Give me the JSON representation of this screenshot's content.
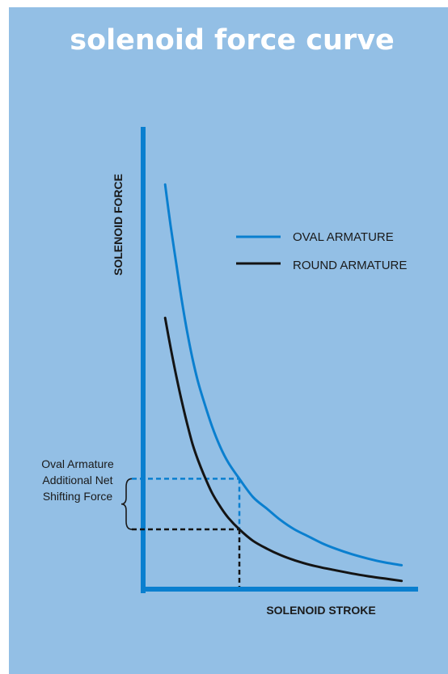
{
  "chart_data": {
    "type": "line",
    "title": "solenoid force curve",
    "xlabel": "SOLENOID STROKE",
    "ylabel": "SOLENOID FORCE",
    "xlim": [
      0,
      100
    ],
    "ylim": [
      0,
      100
    ],
    "grid": false,
    "legend_position": "top-right",
    "series": [
      {
        "name": "OVAL ARMATURE",
        "color": "#0a7fcf",
        "x": [
          8,
          10,
          12,
          14,
          16,
          18,
          20,
          22,
          25,
          28,
          31,
          35,
          40,
          45,
          50,
          55,
          60,
          65,
          70,
          76,
          82,
          88,
          94
        ],
        "y": [
          88,
          79,
          71,
          63,
          56,
          50,
          45,
          41,
          35.5,
          31,
          27.5,
          24,
          20,
          17.5,
          15,
          13,
          11.5,
          10,
          8.8,
          7.6,
          6.6,
          5.8,
          5.2
        ]
      },
      {
        "name": "ROUND ARMATURE",
        "color": "#141414",
        "x": [
          8,
          10,
          12,
          14,
          16,
          18,
          20,
          22,
          25,
          28,
          31,
          35,
          40,
          45,
          50,
          55,
          60,
          65,
          70,
          76,
          82,
          88,
          94
        ],
        "y": [
          59,
          52.5,
          46.5,
          41,
          36,
          31.5,
          28,
          25,
          21,
          18,
          15.5,
          13,
          10.5,
          8.8,
          7.4,
          6.3,
          5.4,
          4.7,
          4.1,
          3.4,
          2.8,
          2.3,
          1.8
        ]
      }
    ],
    "reference_x": 35,
    "annotation": {
      "lines": [
        "Oval Armature",
        "Additional Net",
        "Shifting Force"
      ]
    }
  }
}
